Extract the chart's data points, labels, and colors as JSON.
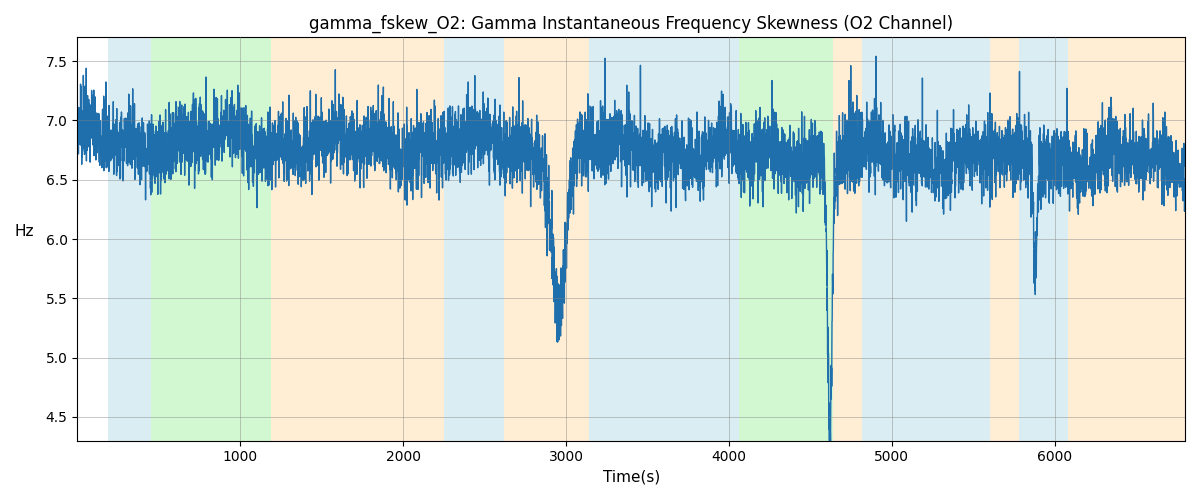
{
  "title": "gamma_fskew_O2: Gamma Instantaneous Frequency Skewness (O2 Channel)",
  "xlabel": "Time(s)",
  "ylabel": "Hz",
  "line_color": "#1f6fad",
  "line_width": 1.0,
  "ylim": [
    4.3,
    7.7
  ],
  "xlim": [
    0,
    6800
  ],
  "yticks": [
    4.5,
    5.0,
    5.5,
    6.0,
    6.5,
    7.0,
    7.5
  ],
  "xticks": [
    1000,
    2000,
    3000,
    4000,
    5000,
    6000
  ],
  "bg_bands": [
    {
      "xmin": 190,
      "xmax": 450,
      "color": "#add8e6",
      "alpha": 0.45
    },
    {
      "xmin": 450,
      "xmax": 1190,
      "color": "#90ee90",
      "alpha": 0.4
    },
    {
      "xmin": 1190,
      "xmax": 1490,
      "color": "#ffdcaa",
      "alpha": 0.5
    },
    {
      "xmin": 1490,
      "xmax": 2250,
      "color": "#ffdcaa",
      "alpha": 0.5
    },
    {
      "xmin": 2250,
      "xmax": 2620,
      "color": "#add8e6",
      "alpha": 0.45
    },
    {
      "xmin": 2620,
      "xmax": 3140,
      "color": "#ffdcaa",
      "alpha": 0.5
    },
    {
      "xmin": 3140,
      "xmax": 3860,
      "color": "#add8e6",
      "alpha": 0.45
    },
    {
      "xmin": 3860,
      "xmax": 4060,
      "color": "#add8e6",
      "alpha": 0.45
    },
    {
      "xmin": 4060,
      "xmax": 4640,
      "color": "#90ee90",
      "alpha": 0.4
    },
    {
      "xmin": 4640,
      "xmax": 4820,
      "color": "#ffdcaa",
      "alpha": 0.5
    },
    {
      "xmin": 4820,
      "xmax": 5600,
      "color": "#add8e6",
      "alpha": 0.45
    },
    {
      "xmin": 5600,
      "xmax": 5780,
      "color": "#ffdcaa",
      "alpha": 0.5
    },
    {
      "xmin": 5780,
      "xmax": 6080,
      "color": "#add8e6",
      "alpha": 0.45
    },
    {
      "xmin": 6080,
      "xmax": 6800,
      "color": "#ffdcaa",
      "alpha": 0.5
    }
  ],
  "title_fontsize": 12,
  "label_fontsize": 11,
  "tick_fontsize": 10
}
